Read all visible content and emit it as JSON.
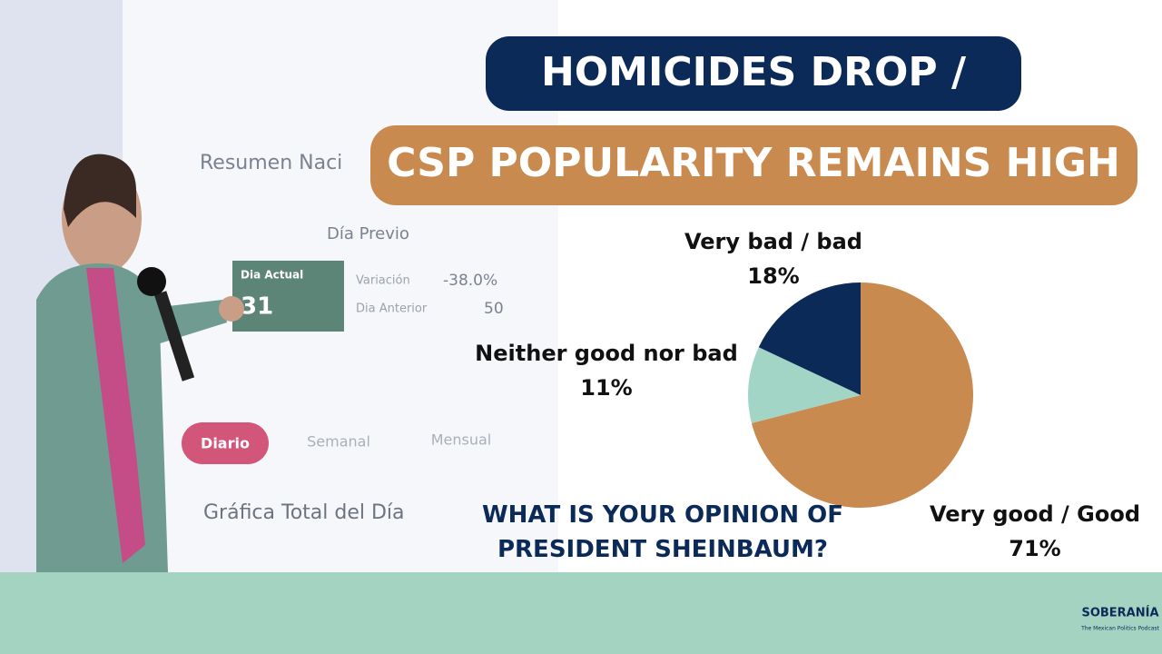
{
  "chart_data": {
    "type": "pie",
    "title": "HOMICIDES DROP /",
    "subtitle": "CSP POPULARITY REMAINS HIGH",
    "question": "WHAT IS YOUR OPINION OF PRESIDENT SHEINBAUM?",
    "categories": [
      "Very good / Good",
      "Neither good nor bad",
      "Very bad / bad"
    ],
    "values": [
      71,
      11,
      18
    ],
    "value_labels": [
      "71%",
      "11%",
      "18%"
    ],
    "colors": [
      "#c98a50",
      "#a3d5c6",
      "#0b2a57"
    ]
  },
  "background_screen": {
    "heading": "Resumen Naci",
    "section": "Día Previo",
    "card_label": "Dia Actual",
    "card_value": "31",
    "variation_label": "Variación",
    "variation_value": "-38.0%",
    "previous_label": "Dia Anterior",
    "previous_value": "50",
    "tabs": [
      "Diario",
      "Semanal",
      "Mensual"
    ],
    "chart_heading": "Gráfica Total del Día"
  },
  "logo": {
    "name": "SOBERANÍA",
    "tagline": "The Mexican Politics Podcast"
  }
}
